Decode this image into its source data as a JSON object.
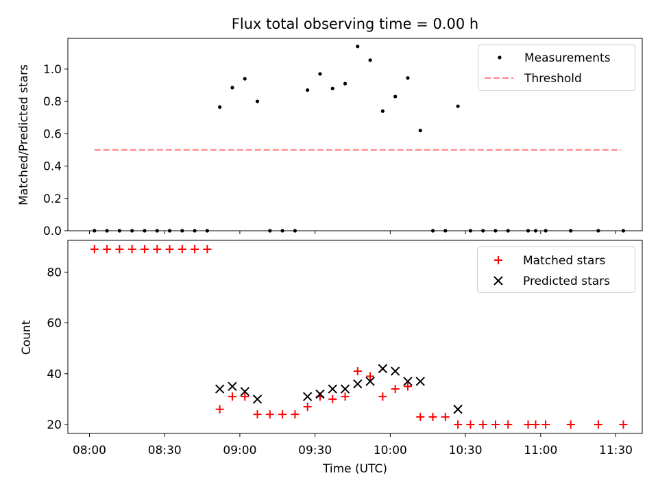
{
  "chart_data": [
    {
      "type": "scatter",
      "title": "Flux total observing time = 0.00 h",
      "xlabel": "",
      "ylabel": "Matched/Predicted stars",
      "ylim": [
        0,
        1.19
      ],
      "yticks": [
        "0.0",
        "0.2",
        "0.4",
        "0.6",
        "0.8",
        "1.0"
      ],
      "legend_position": "top-right",
      "series": [
        {
          "name": "Measurements",
          "marker": "dot",
          "color": "#000000",
          "points": [
            [
              "08:02",
              0.0
            ],
            [
              "08:07",
              0.0
            ],
            [
              "08:12",
              0.0
            ],
            [
              "08:17",
              0.0
            ],
            [
              "08:22",
              0.0
            ],
            [
              "08:27",
              0.0
            ],
            [
              "08:32",
              0.0
            ],
            [
              "08:37",
              0.0
            ],
            [
              "08:42",
              0.0
            ],
            [
              "08:47",
              0.0
            ],
            [
              "08:52",
              0.765
            ],
            [
              "08:57",
              0.885
            ],
            [
              "09:02",
              0.94
            ],
            [
              "09:07",
              0.8
            ],
            [
              "09:12",
              0.0
            ],
            [
              "09:17",
              0.0
            ],
            [
              "09:22",
              0.0
            ],
            [
              "09:27",
              0.87
            ],
            [
              "09:32",
              0.97
            ],
            [
              "09:37",
              0.88
            ],
            [
              "09:42",
              0.91
            ],
            [
              "09:47",
              1.14
            ],
            [
              "09:52",
              1.055
            ],
            [
              "09:57",
              0.74
            ],
            [
              "10:02",
              0.83
            ],
            [
              "10:07",
              0.945
            ],
            [
              "10:12",
              0.62
            ],
            [
              "10:17",
              0.0
            ],
            [
              "10:22",
              0.0
            ],
            [
              "10:27",
              0.77
            ],
            [
              "10:32",
              0.0
            ],
            [
              "10:37",
              0.0
            ],
            [
              "10:42",
              0.0
            ],
            [
              "10:47",
              0.0
            ],
            [
              "10:55",
              0.0
            ],
            [
              "10:58",
              0.0
            ],
            [
              "11:02",
              0.0
            ],
            [
              "11:12",
              0.0
            ],
            [
              "11:23",
              0.0
            ],
            [
              "11:33",
              0.0
            ]
          ]
        },
        {
          "name": "Threshold",
          "marker": "dashed-line",
          "color": "#ff7f7f",
          "points": [
            [
              "08:02",
              0.5
            ],
            [
              "11:32",
              0.5
            ]
          ]
        }
      ]
    },
    {
      "type": "scatter",
      "title": "",
      "xlabel": "Time (UTC)",
      "ylabel": "Count",
      "ylim": [
        16.5,
        92.5
      ],
      "yticks": [
        "20",
        "40",
        "60",
        "80"
      ],
      "xticks": [
        "08:00",
        "08:30",
        "09:00",
        "09:30",
        "10:00",
        "10:30",
        "11:00",
        "11:30"
      ],
      "legend_position": "top-right",
      "series": [
        {
          "name": "Matched stars",
          "marker": "plus",
          "color": "#ff0000",
          "points": [
            [
              "08:02",
              89
            ],
            [
              "08:07",
              89
            ],
            [
              "08:12",
              89
            ],
            [
              "08:17",
              89
            ],
            [
              "08:22",
              89
            ],
            [
              "08:27",
              89
            ],
            [
              "08:32",
              89
            ],
            [
              "08:37",
              89
            ],
            [
              "08:42",
              89
            ],
            [
              "08:47",
              89
            ],
            [
              "08:52",
              26
            ],
            [
              "08:57",
              31
            ],
            [
              "09:02",
              31
            ],
            [
              "09:07",
              24
            ],
            [
              "09:12",
              24
            ],
            [
              "09:17",
              24
            ],
            [
              "09:22",
              24
            ],
            [
              "09:27",
              27
            ],
            [
              "09:32",
              31
            ],
            [
              "09:37",
              30
            ],
            [
              "09:42",
              31
            ],
            [
              "09:47",
              41
            ],
            [
              "09:52",
              39
            ],
            [
              "09:57",
              31
            ],
            [
              "10:02",
              34
            ],
            [
              "10:07",
              35
            ],
            [
              "10:12",
              23
            ],
            [
              "10:17",
              23
            ],
            [
              "10:22",
              23
            ],
            [
              "10:27",
              20
            ],
            [
              "10:32",
              20
            ],
            [
              "10:37",
              20
            ],
            [
              "10:42",
              20
            ],
            [
              "10:47",
              20
            ],
            [
              "10:55",
              20
            ],
            [
              "10:58",
              20
            ],
            [
              "11:02",
              20
            ],
            [
              "11:12",
              20
            ],
            [
              "11:23",
              20
            ],
            [
              "11:33",
              20
            ]
          ]
        },
        {
          "name": "Predicted stars",
          "marker": "x",
          "color": "#000000",
          "points": [
            [
              "08:52",
              34
            ],
            [
              "08:57",
              35
            ],
            [
              "09:02",
              33
            ],
            [
              "09:07",
              30
            ],
            [
              "09:27",
              31
            ],
            [
              "09:32",
              32
            ],
            [
              "09:37",
              34
            ],
            [
              "09:42",
              34
            ],
            [
              "09:47",
              36
            ],
            [
              "09:52",
              37
            ],
            [
              "09:57",
              42
            ],
            [
              "10:02",
              41
            ],
            [
              "10:07",
              37
            ],
            [
              "10:12",
              37
            ],
            [
              "10:27",
              26
            ]
          ]
        }
      ]
    }
  ]
}
